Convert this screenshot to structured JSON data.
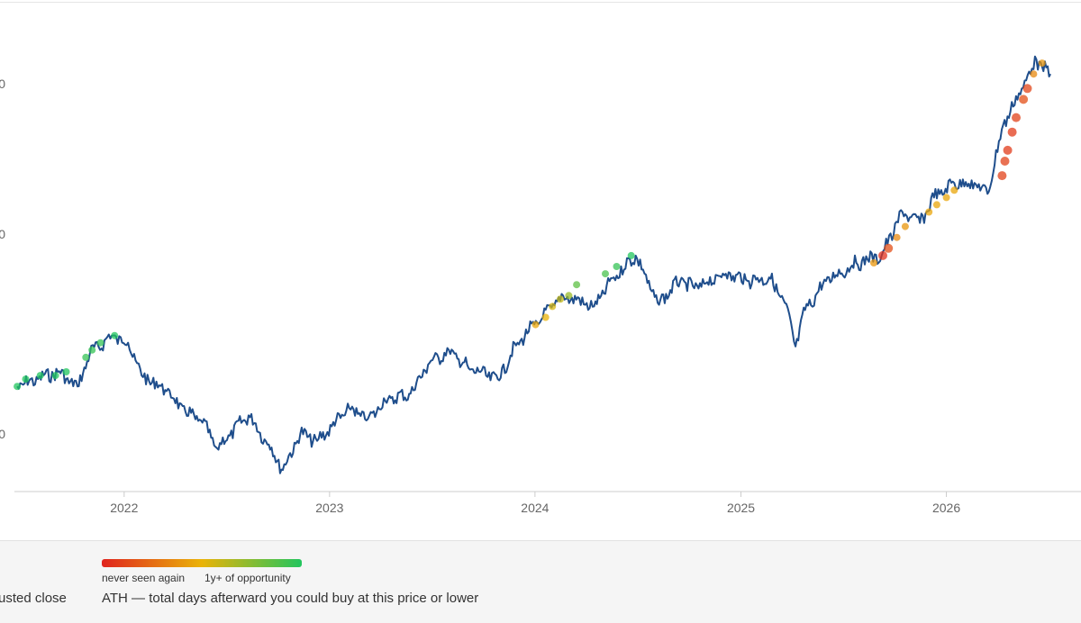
{
  "chart_data": {
    "type": "line",
    "title": "",
    "xlabel": "",
    "ylabel": "",
    "x_ticks": [
      "2022",
      "2023",
      "2024",
      "2025",
      "2026"
    ],
    "y_ticks_visible": [
      "0",
      "0",
      "0"
    ],
    "x_range": [
      "2021-06-20",
      "2026-07-08"
    ],
    "grid": false,
    "series": [
      {
        "name": "adjusted close",
        "color": "#1f4e8c",
        "points": [
          [
            "2021-06-25",
            0.14
          ],
          [
            "2021-08-01",
            0.16
          ],
          [
            "2021-09-05",
            0.18
          ],
          [
            "2021-10-10",
            0.14
          ],
          [
            "2021-11-01",
            0.23
          ],
          [
            "2021-12-10",
            0.28
          ],
          [
            "2022-01-08",
            0.26
          ],
          [
            "2022-02-01",
            0.17
          ],
          [
            "2022-03-15",
            0.13
          ],
          [
            "2022-04-20",
            0.07
          ],
          [
            "2022-05-20",
            0.04
          ],
          [
            "2022-06-15",
            -0.03
          ],
          [
            "2022-08-10",
            0.06
          ],
          [
            "2022-09-15",
            -0.02
          ],
          [
            "2022-10-10",
            -0.09
          ],
          [
            "2022-11-10",
            0.01
          ],
          [
            "2022-12-10",
            -0.01
          ],
          [
            "2023-01-05",
            0.03
          ],
          [
            "2023-02-05",
            0.08
          ],
          [
            "2023-03-10",
            0.05
          ],
          [
            "2023-04-10",
            0.1
          ],
          [
            "2023-05-25",
            0.12
          ],
          [
            "2023-06-25",
            0.2
          ],
          [
            "2023-08-01",
            0.24
          ],
          [
            "2023-09-05",
            0.19
          ],
          [
            "2023-10-27",
            0.16
          ],
          [
            "2023-12-01",
            0.26
          ],
          [
            "2024-01-15",
            0.33
          ],
          [
            "2024-02-20",
            0.39
          ],
          [
            "2024-04-15",
            0.36
          ],
          [
            "2024-05-20",
            0.44
          ],
          [
            "2024-06-28",
            0.5
          ],
          [
            "2024-08-06",
            0.37
          ],
          [
            "2024-09-15",
            0.43
          ],
          [
            "2024-10-10",
            0.41
          ],
          [
            "2024-12-05",
            0.45
          ],
          [
            "2025-01-15",
            0.43
          ],
          [
            "2025-02-20",
            0.44
          ],
          [
            "2025-03-20",
            0.37
          ],
          [
            "2025-04-08",
            0.25
          ],
          [
            "2025-04-25",
            0.35
          ],
          [
            "2025-06-01",
            0.43
          ],
          [
            "2025-07-25",
            0.48
          ],
          [
            "2025-09-08",
            0.5
          ],
          [
            "2025-10-15",
            0.62
          ],
          [
            "2025-11-15",
            0.59
          ],
          [
            "2025-12-10",
            0.66
          ],
          [
            "2026-01-15",
            0.7
          ],
          [
            "2026-02-20",
            0.7
          ],
          [
            "2026-03-15",
            0.67
          ],
          [
            "2026-04-12",
            0.86
          ],
          [
            "2026-05-15",
            0.96
          ],
          [
            "2026-06-10",
            1.04
          ],
          [
            "2026-06-20",
            1.02
          ],
          [
            "2026-07-05",
            1.0
          ]
        ]
      }
    ],
    "ath_markers": {
      "description_scale": [
        "never seen again",
        "1y+ of opportunity"
      ],
      "points": [
        [
          "2021-06-25",
          0.14,
          1.0
        ],
        [
          "2021-07-10",
          0.16,
          1.0
        ],
        [
          "2021-08-05",
          0.17,
          1.0
        ],
        [
          "2021-09-01",
          0.17,
          1.0
        ],
        [
          "2021-09-20",
          0.18,
          1.0
        ],
        [
          "2021-10-25",
          0.22,
          0.95
        ],
        [
          "2021-11-05",
          0.24,
          0.95
        ],
        [
          "2021-11-20",
          0.26,
          0.95
        ],
        [
          "2021-12-15",
          0.28,
          1.0
        ],
        [
          "2024-01-02",
          0.31,
          0.45
        ],
        [
          "2024-01-20",
          0.33,
          0.5
        ],
        [
          "2024-02-01",
          0.36,
          0.55
        ],
        [
          "2024-02-15",
          0.38,
          0.6
        ],
        [
          "2024-03-01",
          0.39,
          0.7
        ],
        [
          "2024-03-15",
          0.42,
          0.85
        ],
        [
          "2024-05-05",
          0.45,
          0.9
        ],
        [
          "2024-05-25",
          0.47,
          0.95
        ],
        [
          "2024-06-20",
          0.5,
          1.0
        ],
        [
          "2025-08-25",
          0.48,
          0.4
        ],
        [
          "2025-09-10",
          0.5,
          0.05
        ],
        [
          "2025-09-20",
          0.52,
          0.15
        ],
        [
          "2025-10-05",
          0.55,
          0.35
        ],
        [
          "2025-10-20",
          0.58,
          0.4
        ],
        [
          "2025-12-01",
          0.62,
          0.45
        ],
        [
          "2025-12-15",
          0.64,
          0.45
        ],
        [
          "2026-01-01",
          0.66,
          0.45
        ],
        [
          "2026-01-15",
          0.68,
          0.45
        ],
        [
          "2026-04-10",
          0.72,
          0.1
        ],
        [
          "2026-04-15",
          0.76,
          0.1
        ],
        [
          "2026-04-20",
          0.79,
          0.08
        ],
        [
          "2026-04-28",
          0.84,
          0.08
        ],
        [
          "2026-05-05",
          0.88,
          0.1
        ],
        [
          "2026-05-18",
          0.93,
          0.15
        ],
        [
          "2026-05-25",
          0.96,
          0.12
        ],
        [
          "2026-06-05",
          1.0,
          0.35
        ],
        [
          "2026-06-20",
          1.03,
          0.4
        ]
      ]
    },
    "color_scale": [
      "#e0241e",
      "#eab308",
      "#22c55e"
    ]
  },
  "legend": {
    "gradient_low_label": "never seen again",
    "gradient_high_label": "1y+ of opportunity",
    "series_label": "usted close",
    "markers_label": "ATH — total days afterward you could buy at this price or lower"
  }
}
